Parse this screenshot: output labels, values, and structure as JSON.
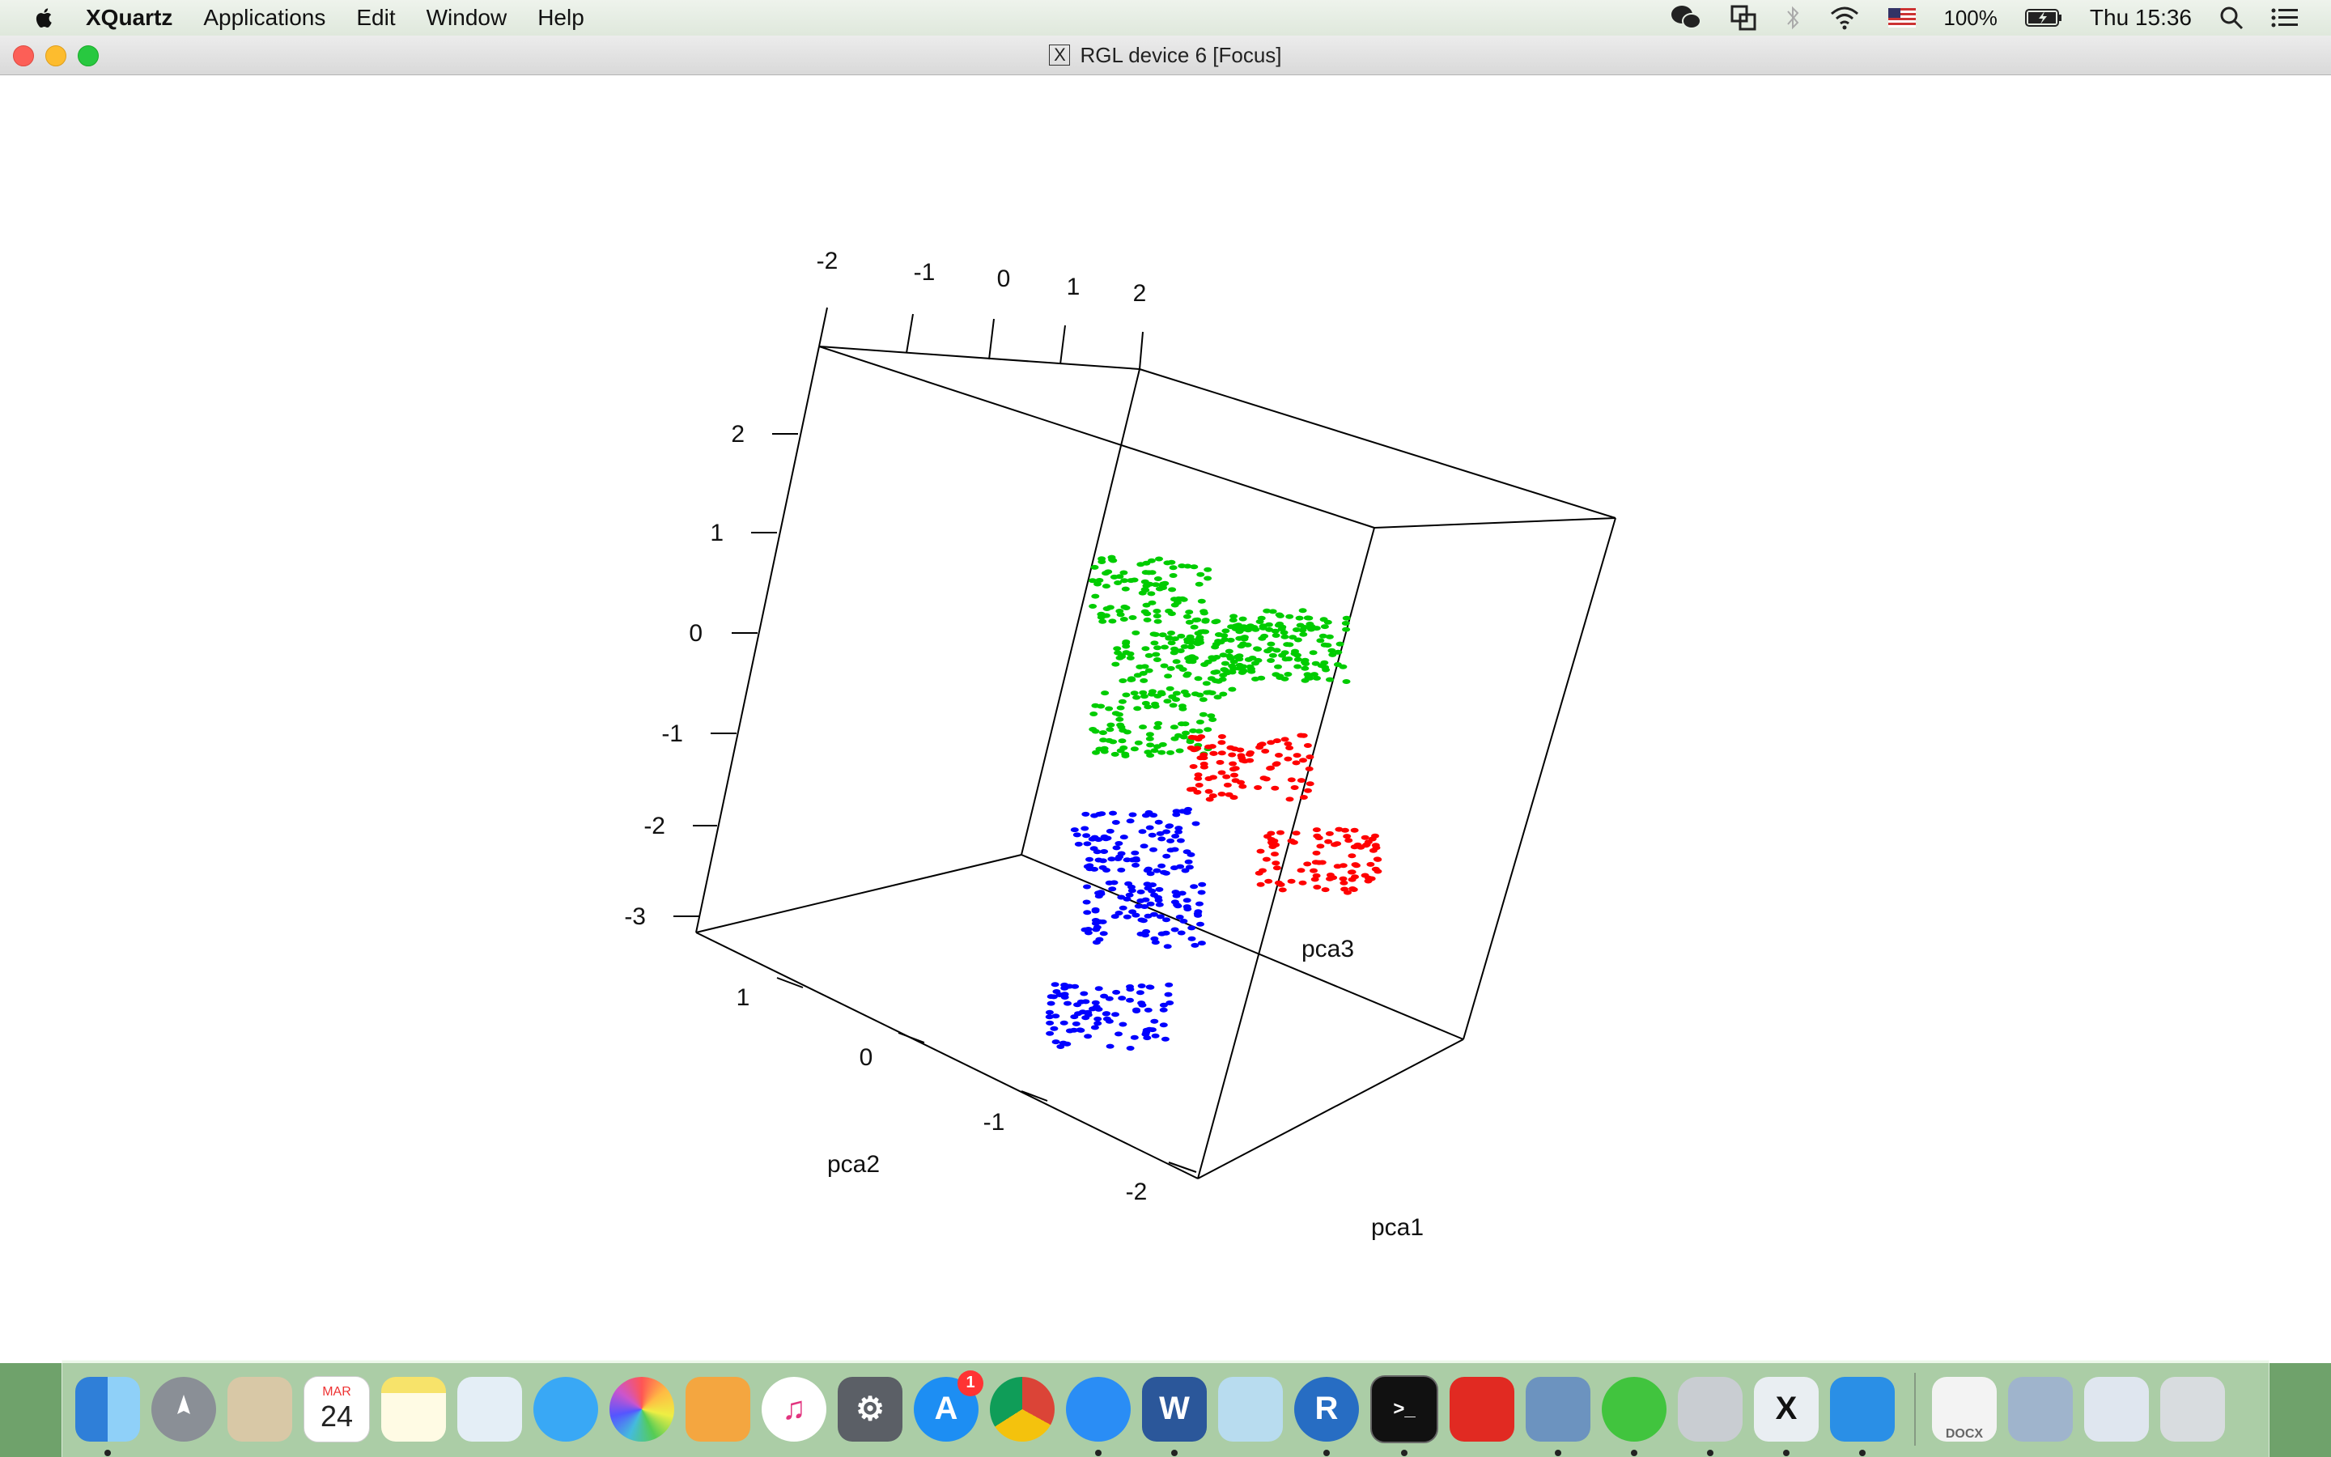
{
  "menubar": {
    "app_name": "XQuartz",
    "menus": [
      "Applications",
      "Edit",
      "Window",
      "Help"
    ],
    "battery": "100%",
    "clock": "Thu 15:36"
  },
  "window": {
    "title_icon": "X",
    "title": "RGL device 6 [Focus]"
  },
  "chart_data": {
    "type": "scatter",
    "subtype": "3d-scatter",
    "title": "",
    "axes": {
      "pca1": {
        "label": "pca1",
        "ticks": [
          "-2",
          "-1",
          "0",
          "1",
          "2"
        ],
        "range": [
          -2,
          2
        ]
      },
      "pca2": {
        "label": "pca2",
        "ticks": [
          "1",
          "0",
          "-1",
          "-2"
        ],
        "range": [
          -2,
          1
        ]
      },
      "pca3": {
        "label": "pca3",
        "ticks": [
          "2",
          "1",
          "0",
          "-1",
          "-2",
          "-3"
        ],
        "range": [
          -3,
          2
        ]
      }
    },
    "series": [
      {
        "color": "#00cc00",
        "clusters": [
          {
            "pca1": -1.2,
            "pca2": 0.6,
            "pca3": 0.3
          },
          {
            "pca1": -0.6,
            "pca2": 0.2,
            "pca3": 0.0
          },
          {
            "pca1": 0.2,
            "pca2": -0.2,
            "pca3": 0.8
          },
          {
            "pca1": 0.8,
            "pca2": -0.6,
            "pca3": 1.2
          },
          {
            "pca1": -0.8,
            "pca2": 0.4,
            "pca3": -0.8
          }
        ]
      },
      {
        "color": "#ff0000",
        "clusters": [
          {
            "pca1": 1.6,
            "pca2": -0.8,
            "pca3": -0.5
          },
          {
            "pca1": 0.6,
            "pca2": -0.4,
            "pca3": -0.2
          }
        ]
      },
      {
        "color": "#0000ff",
        "clusters": [
          {
            "pca1": 0.0,
            "pca2": -0.4,
            "pca3": -2.0
          },
          {
            "pca1": -0.9,
            "pca2": 0.7,
            "pca3": -2.2
          },
          {
            "pca1": 0.0,
            "pca2": -0.5,
            "pca3": -3.0
          }
        ]
      }
    ],
    "grid": false,
    "legend": "none"
  },
  "dock": {
    "calendar_month": "MAR",
    "calendar_day": "24",
    "appstore_badge": "1",
    "word_label": "W",
    "r_label": "R",
    "terminal_label": ">_",
    "docx_label": "DOCX"
  }
}
